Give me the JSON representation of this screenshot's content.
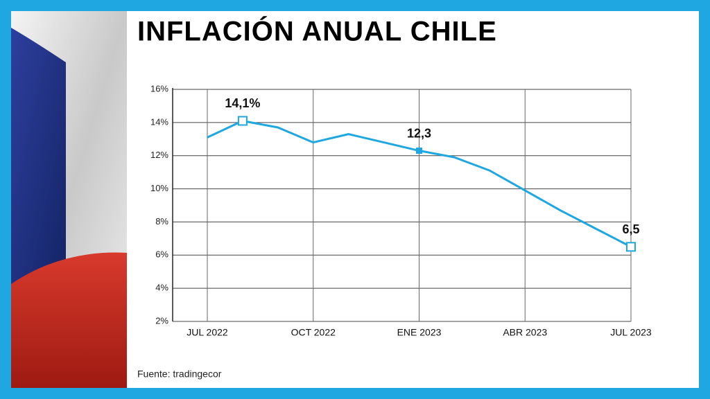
{
  "chart_data": {
    "type": "line",
    "title": "INFLACIÓN ANUAL CHILE",
    "source": "Fuente: tradingecor",
    "categories": [
      "JUL 2022",
      null,
      null,
      "OCT 2022",
      null,
      null,
      "ENE 2023",
      null,
      null,
      "ABR 2023",
      null,
      null,
      "JUL 2023"
    ],
    "values": [
      13.1,
      14.1,
      13.7,
      12.8,
      13.3,
      12.8,
      12.3,
      11.9,
      11.1,
      9.9,
      8.7,
      7.6,
      6.5
    ],
    "value_labels": [
      null,
      "14,1%",
      null,
      null,
      null,
      null,
      "12,3",
      null,
      null,
      null,
      null,
      null,
      "6,5"
    ],
    "color": "#1ea7e0",
    "ylim": [
      2,
      16
    ],
    "yticks": [
      {
        "value": 2,
        "label": "2%"
      },
      {
        "value": 4,
        "label": "4%"
      },
      {
        "value": 6,
        "label": "6%"
      },
      {
        "value": 8,
        "label": "8%"
      },
      {
        "value": 10,
        "label": "10%"
      },
      {
        "value": 12,
        "label": "12%"
      },
      {
        "value": 14,
        "label": "14%"
      },
      {
        "value": 16,
        "label": "16%"
      }
    ],
    "grid": true
  }
}
